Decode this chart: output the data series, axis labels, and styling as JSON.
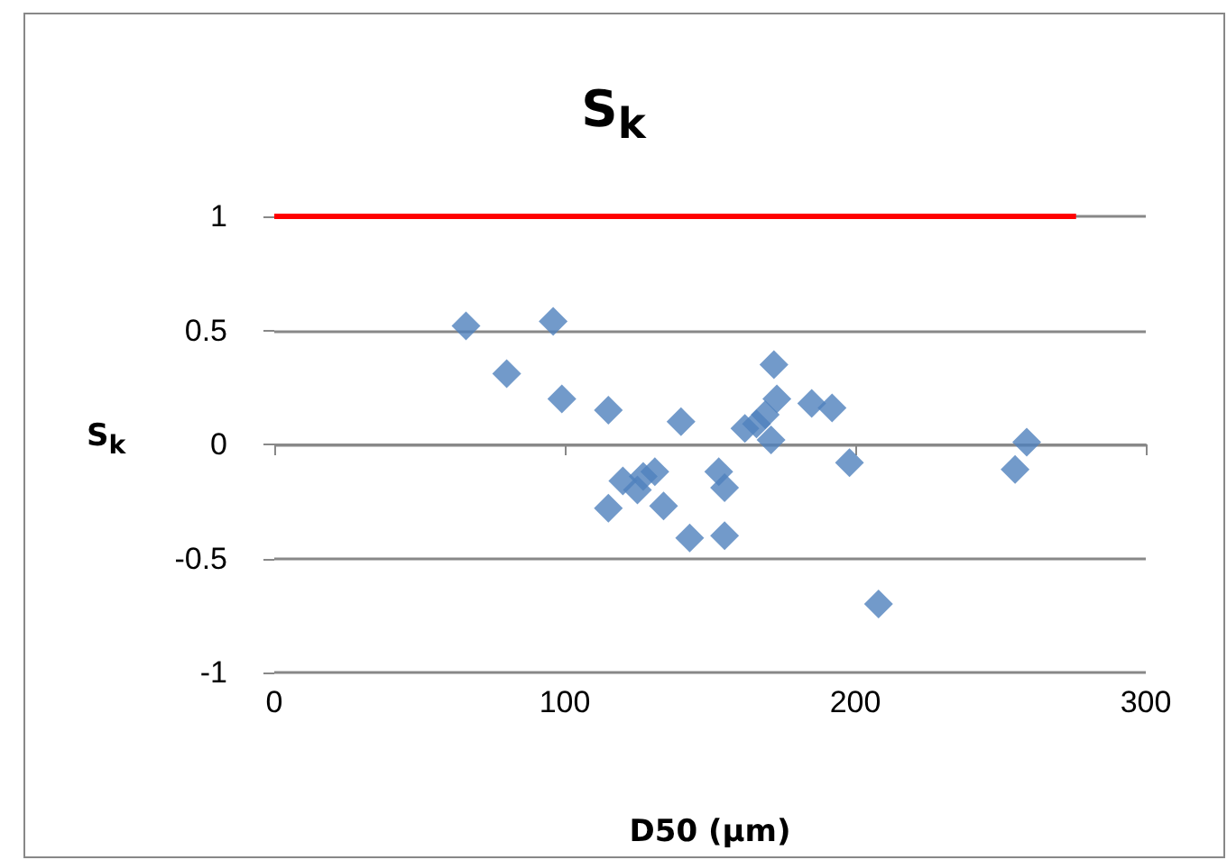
{
  "chart_data": {
    "type": "scatter",
    "title": "S$_{k}$",
    "xlabel": "D50 (µm)",
    "ylabel": "S$_{k}$",
    "xlim": [
      0,
      300
    ],
    "xticks": [
      0,
      100,
      200,
      300
    ],
    "ylim": [
      -1,
      1
    ],
    "yticks": [
      -1,
      -0.5,
      0,
      0.5,
      1
    ],
    "grid": "y",
    "marker": "diamond",
    "series": [
      {
        "color": "#4f81bd",
        "x": [
          66,
          96,
          80,
          99,
          115,
          140,
          115,
          120,
          125,
          127,
          131,
          134,
          143,
          153,
          155,
          155,
          162,
          166,
          172,
          173,
          171,
          169,
          185,
          192,
          198,
          208,
          255,
          259
        ],
        "values": [
          0.52,
          0.54,
          0.31,
          0.2,
          0.15,
          0.1,
          -0.28,
          -0.16,
          -0.2,
          -0.14,
          -0.12,
          -0.27,
          -0.41,
          -0.12,
          -0.19,
          -0.4,
          0.07,
          0.09,
          0.35,
          0.2,
          0.02,
          0.13,
          0.18,
          0.16,
          -0.08,
          -0.7,
          -0.11,
          0.01
        ]
      },
      {
        "type": "line",
        "color": "#ff0000",
        "marker": "none",
        "x": [
          0,
          276
        ],
        "values": [
          1,
          1
        ]
      }
    ]
  }
}
